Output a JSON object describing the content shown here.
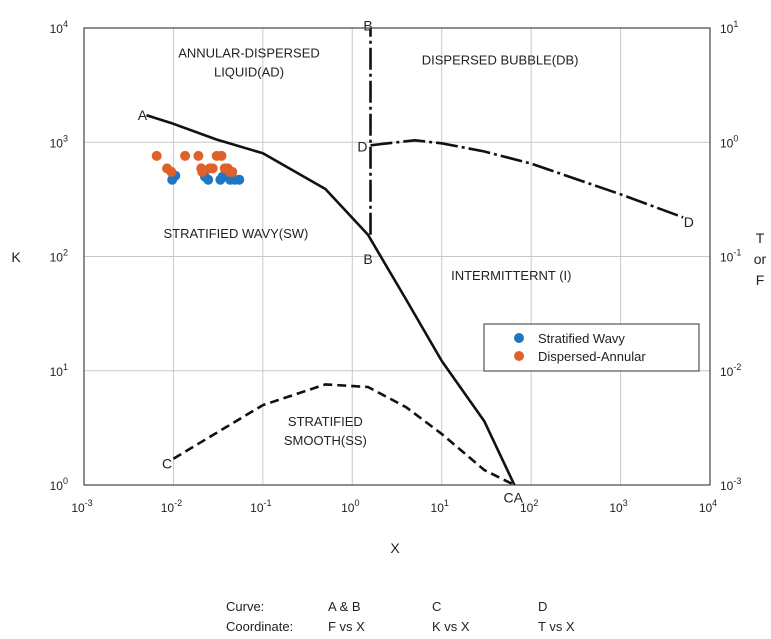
{
  "chart_data": {
    "type": "line",
    "axes": {
      "x": {
        "label": "X",
        "scale": "log",
        "range": [
          0.001,
          10000
        ],
        "ticks": [
          {
            "base": "10",
            "exp": "-3"
          },
          {
            "base": "10",
            "exp": "-2"
          },
          {
            "base": "10",
            "exp": "-1"
          },
          {
            "base": "10",
            "exp": "0"
          },
          {
            "base": "10",
            "exp": "1"
          },
          {
            "base": "10",
            "exp": "2"
          },
          {
            "base": "10",
            "exp": "3"
          },
          {
            "base": "10",
            "exp": "4"
          }
        ]
      },
      "y_left": {
        "label": "K",
        "scale": "log",
        "range": [
          1,
          10000
        ],
        "ticks": [
          {
            "base": "10",
            "exp": "0"
          },
          {
            "base": "10",
            "exp": "1"
          },
          {
            "base": "10",
            "exp": "2"
          },
          {
            "base": "10",
            "exp": "3"
          },
          {
            "base": "10",
            "exp": "4"
          }
        ]
      },
      "y_right": {
        "label_lines": [
          "T",
          "or",
          "F"
        ],
        "scale": "log",
        "range": [
          0.001,
          10
        ],
        "ticks": [
          {
            "base": "10",
            "exp": "-3"
          },
          {
            "base": "10",
            "exp": "-2"
          },
          {
            "base": "10",
            "exp": "-1"
          },
          {
            "base": "10",
            "exp": "0"
          },
          {
            "base": "10",
            "exp": "1"
          }
        ]
      }
    },
    "grid": true,
    "curves": [
      {
        "id": "A",
        "axis": "right",
        "style": "solid",
        "x": [
          0.005,
          0.01,
          0.03,
          0.1,
          0.5,
          1.5,
          4,
          10,
          30,
          65
        ],
        "y": [
          1.72,
          1.45,
          1.06,
          0.8,
          0.39,
          0.155,
          0.042,
          0.0122,
          0.0036,
          0.001
        ]
      },
      {
        "id": "B",
        "axis": "right",
        "style": "dash-dot",
        "x": [
          1.6,
          1.6
        ],
        "y": [
          0.155,
          10
        ]
      },
      {
        "id": "C",
        "axis": "left",
        "style": "dashed",
        "x": [
          0.01,
          0.1,
          0.5,
          1.5,
          4,
          10,
          30,
          65
        ],
        "y": [
          1.7,
          5,
          7.6,
          7.2,
          4.8,
          2.8,
          1.35,
          1
        ]
      },
      {
        "id": "D",
        "axis": "right",
        "style": "dash-dot",
        "x": [
          1.6,
          5,
          10,
          30,
          100,
          1000,
          5000
        ],
        "y": [
          0.94,
          1.04,
          0.98,
          0.83,
          0.65,
          0.35,
          0.22
        ]
      }
    ],
    "curve_labels": [
      {
        "text": "A",
        "x": 0.0045,
        "y": 1.73,
        "axis": "right"
      },
      {
        "text": "B",
        "x": 1.5,
        "y": 10.5,
        "axis": "right"
      },
      {
        "text": "B",
        "x": 1.5,
        "y": 0.095,
        "axis": "right"
      },
      {
        "text": "D",
        "x": 1.3,
        "y": 0.92,
        "axis": "right"
      },
      {
        "text": "D",
        "x": 5800,
        "y": 0.2,
        "axis": "right"
      },
      {
        "text": "C",
        "x": 0.0085,
        "y": 1.55,
        "axis": "left"
      },
      {
        "text": "CA",
        "x": 63,
        "y": 0.78,
        "axis": "left"
      }
    ],
    "regions": [
      {
        "lines": [
          "ANNULAR-DISPERSED",
          "LIQUID(AD)"
        ],
        "x": 0.07,
        "y": 5500
      },
      {
        "lines": [
          "DISPERSED BUBBLE(DB)"
        ],
        "x": 45,
        "y": 4800
      },
      {
        "lines": [
          "STRATIFIED WAVY(SW)"
        ],
        "x": 0.05,
        "y": 145
      },
      {
        "lines": [
          "INTERMITTERNT (I)"
        ],
        "x": 60,
        "y": 62
      },
      {
        "lines": [
          "STRATIFIED",
          "SMOOTH(SS)"
        ],
        "x": 0.5,
        "y": 3.3
      }
    ],
    "series": [
      {
        "name": "Stratified Wavy",
        "color": "#1f77c4",
        "points": [
          [
            0.0097,
            470
          ],
          [
            0.0105,
            510
          ],
          [
            0.0225,
            500
          ],
          [
            0.0245,
            470
          ],
          [
            0.0335,
            470
          ],
          [
            0.0355,
            500
          ],
          [
            0.043,
            470
          ],
          [
            0.0485,
            470
          ],
          [
            0.0545,
            470
          ]
        ]
      },
      {
        "name": "Dispersed-Annular",
        "color": "#e0602a",
        "points": [
          [
            0.0065,
            760
          ],
          [
            0.0085,
            590
          ],
          [
            0.0095,
            550
          ],
          [
            0.0135,
            760
          ],
          [
            0.019,
            760
          ],
          [
            0.0205,
            590
          ],
          [
            0.021,
            550
          ],
          [
            0.0255,
            590
          ],
          [
            0.0275,
            590
          ],
          [
            0.0305,
            760
          ],
          [
            0.0345,
            760
          ],
          [
            0.0375,
            590
          ],
          [
            0.0405,
            590
          ],
          [
            0.0425,
            550
          ],
          [
            0.0455,
            550
          ]
        ]
      }
    ],
    "legend": {
      "placement": "lower-right"
    }
  },
  "caption": {
    "row_labels": [
      "Curve:",
      "Coordinate:"
    ],
    "columns": [
      {
        "curve": "A & B",
        "coordinate": "F vs X"
      },
      {
        "curve": "C",
        "coordinate": "K vs X"
      },
      {
        "curve": "D",
        "coordinate": "T vs X"
      }
    ]
  }
}
